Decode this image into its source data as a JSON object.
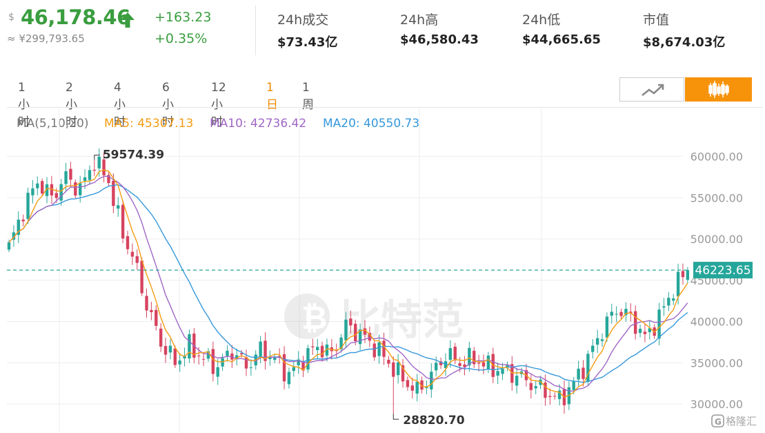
{
  "header": {
    "currency_symbol": "$",
    "price": "46,178.46",
    "price_cny": "≈ ¥299,793.65",
    "change": "+163.23",
    "change_pct": "+0.35%",
    "stats": [
      {
        "label": "24h成交",
        "value": "$73.43亿"
      },
      {
        "label": "24h高",
        "value": "$46,580.43"
      },
      {
        "label": "24h低",
        "value": "$44,665.65"
      },
      {
        "label": "市值",
        "value": "$8,674.03亿"
      }
    ],
    "up_color": "#3a9d3f"
  },
  "timeframes": [
    "1小时",
    "2小时",
    "4小时",
    "6小时",
    "12小时",
    "1日",
    "1周"
  ],
  "active_timeframe": "1日",
  "chart_toggle": {
    "line_icon": "line-chart-icon",
    "candle_icon": "candlestick-icon",
    "active": "candle"
  },
  "ma_legend": {
    "title": "MA(5,10,20)",
    "ma5": "MA5: 45307.13",
    "ma10": "MA10: 42736.42",
    "ma20": "MA20: 40550.73",
    "ma5_color": "#f39c12",
    "ma10_color": "#a066c6",
    "ma20_color": "#3498db"
  },
  "watermark": "比特范",
  "corner_logo": "格隆汇",
  "chart_data": {
    "type": "candlestick",
    "y_ticks": [
      "60000.00",
      "55000.00",
      "50000.00",
      "45000.00",
      "40000.00",
      "35000.00",
      "30000.00"
    ],
    "ylim": [
      28000,
      62000
    ],
    "high_label": "59574.39",
    "low_label": "28820.70",
    "current_price_label": "46223.65",
    "current_price": 46223.65,
    "up_color": "#26a69a",
    "down_color": "#d6435f",
    "grid": true,
    "anchors": [
      [
        0,
        49000
      ],
      [
        3,
        53500
      ],
      [
        6,
        57000
      ],
      [
        9,
        55000
      ],
      [
        12,
        57500
      ],
      [
        15,
        56000
      ],
      [
        18,
        59500
      ],
      [
        21,
        57000
      ],
      [
        24,
        50500
      ],
      [
        26,
        48000
      ],
      [
        29,
        42000
      ],
      [
        32,
        37500
      ],
      [
        35,
        35000
      ],
      [
        38,
        37000
      ],
      [
        41,
        35500
      ],
      [
        44,
        34500
      ],
      [
        47,
        36500
      ],
      [
        50,
        34500
      ],
      [
        53,
        36500
      ],
      [
        56,
        35500
      ],
      [
        59,
        33500
      ],
      [
        62,
        35500
      ],
      [
        65,
        37000
      ],
      [
        68,
        36000
      ],
      [
        71,
        39500
      ],
      [
        74,
        38500
      ],
      [
        77,
        37000
      ],
      [
        80,
        35000
      ],
      [
        83,
        33000
      ],
      [
        86,
        31500
      ],
      [
        89,
        33500
      ],
      [
        92,
        36000
      ],
      [
        95,
        35000
      ],
      [
        98,
        35500
      ],
      [
        101,
        34500
      ],
      [
        104,
        34000
      ],
      [
        107,
        33500
      ],
      [
        110,
        32500
      ],
      [
        113,
        31500
      ],
      [
        116,
        30500
      ],
      [
        119,
        32500
      ],
      [
        122,
        35500
      ],
      [
        125,
        39000
      ],
      [
        128,
        41500
      ],
      [
        131,
        40500
      ],
      [
        134,
        38000
      ],
      [
        137,
        40500
      ],
      [
        140,
        44000
      ],
      [
        143,
        46200
      ]
    ]
  }
}
